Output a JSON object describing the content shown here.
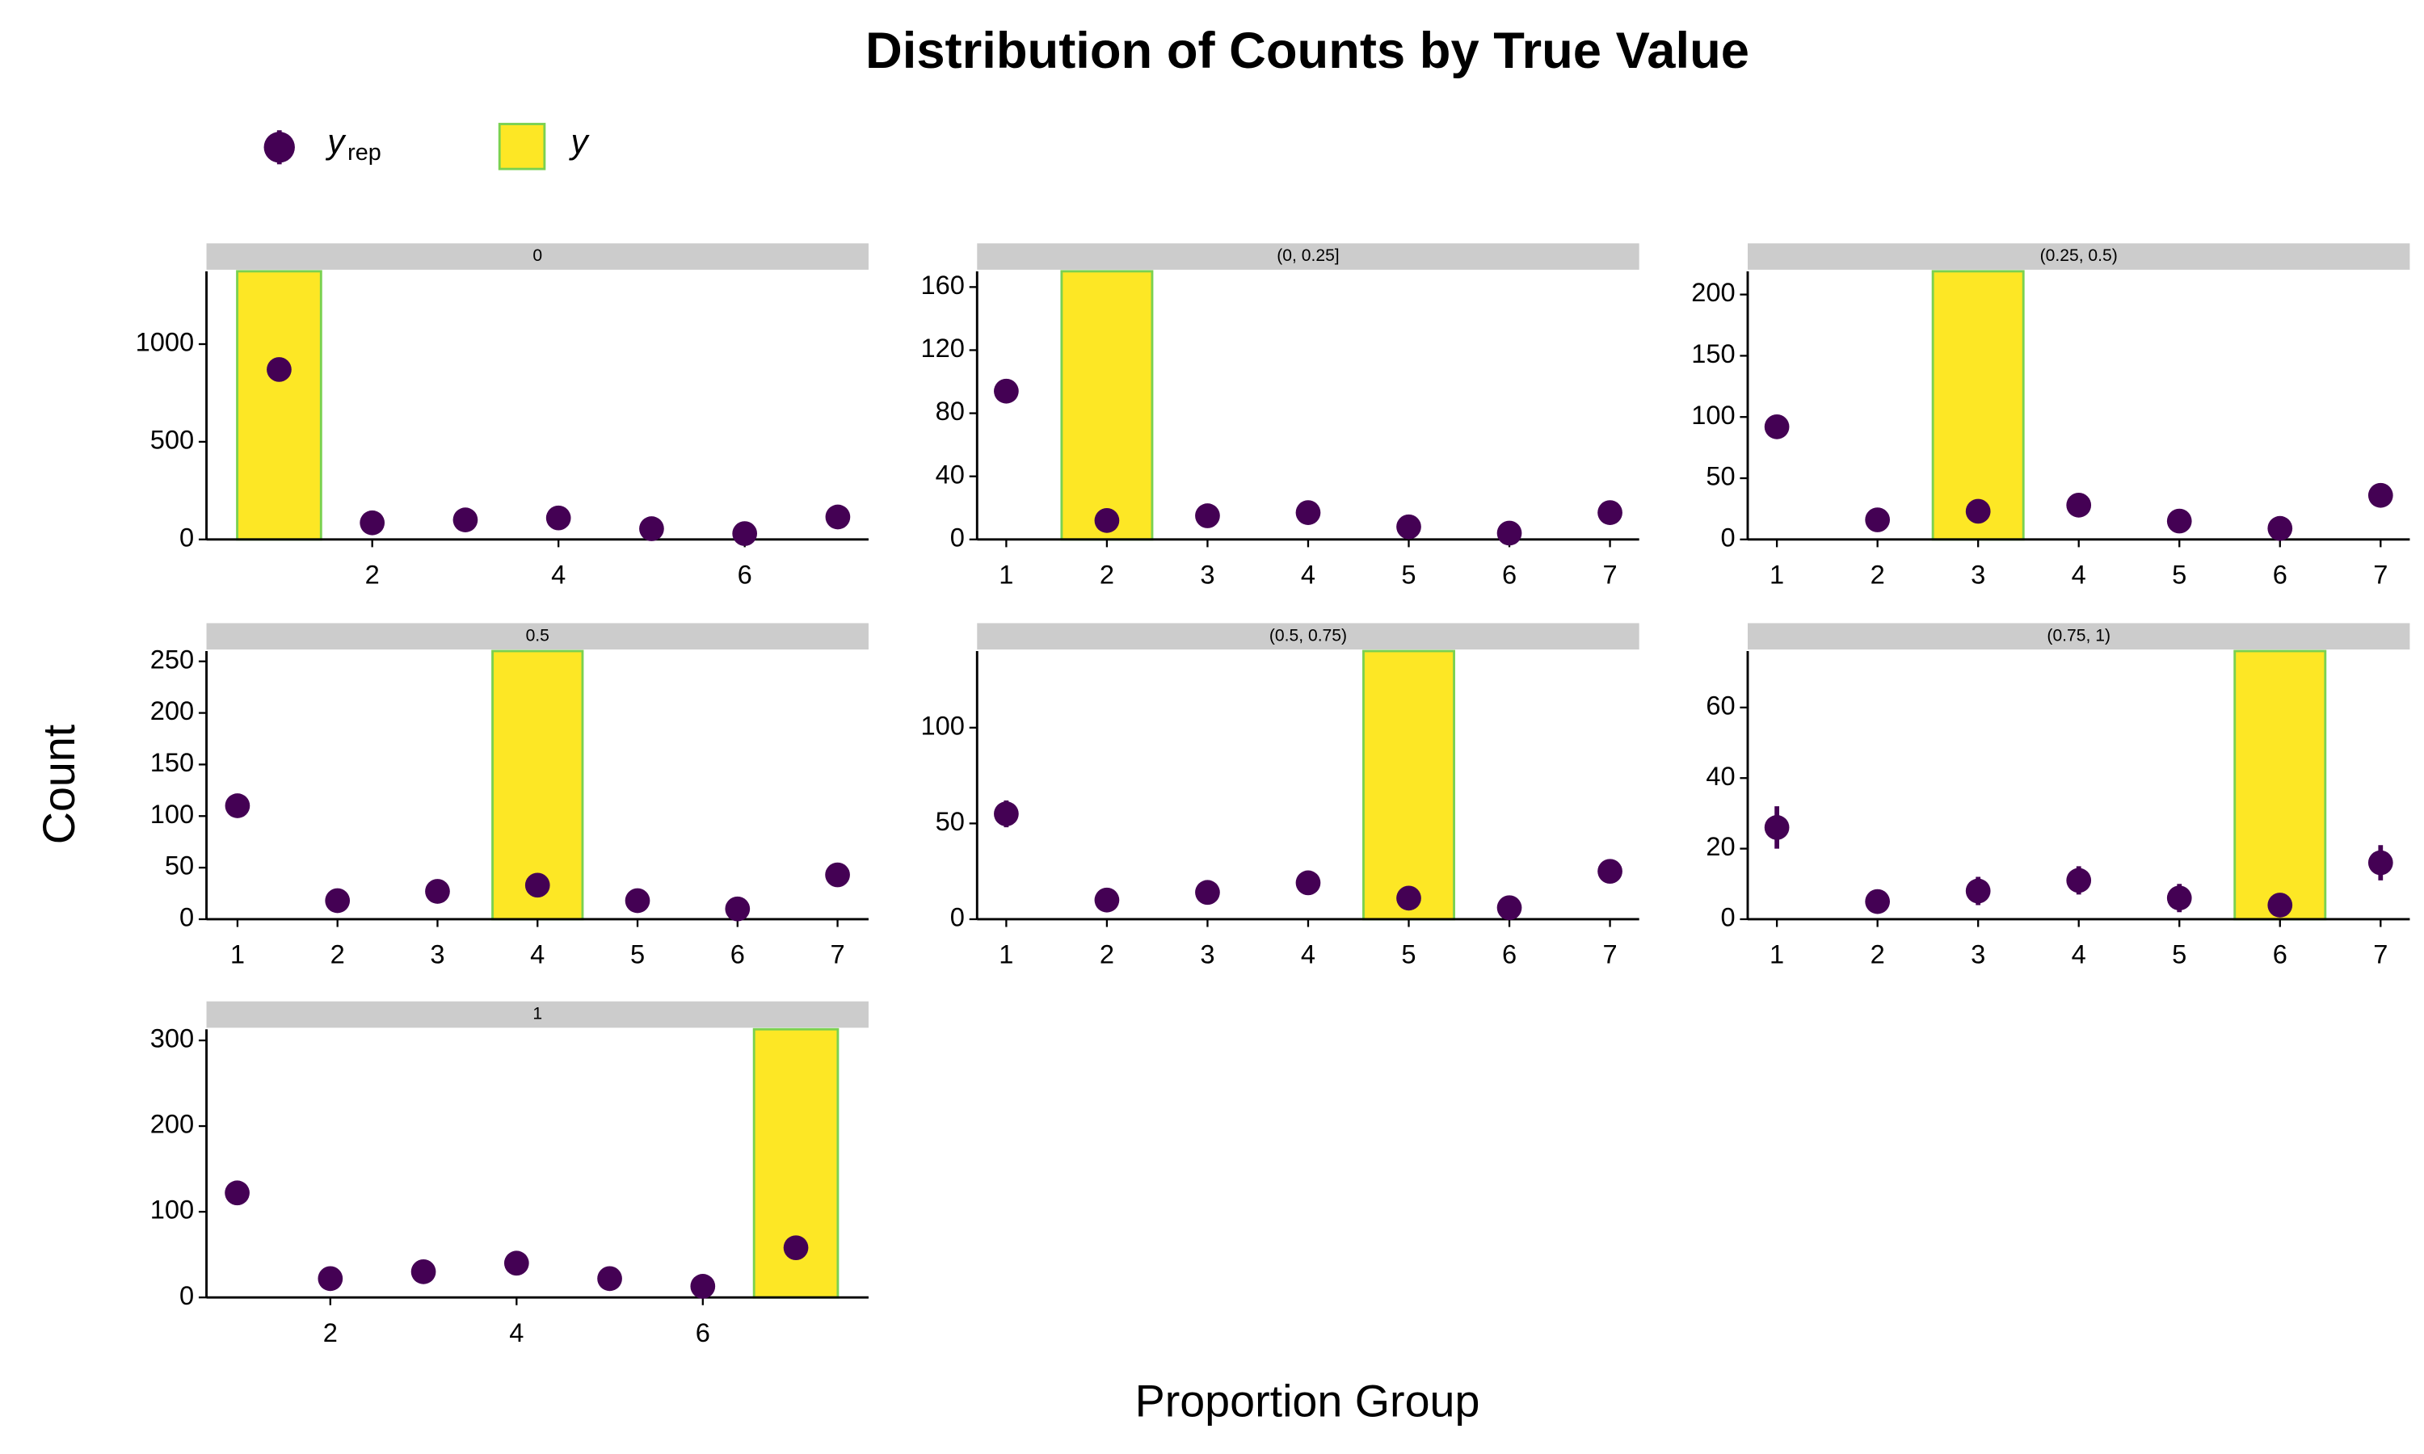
{
  "chart_data": {
    "type": "facet",
    "title": "Distribution of Counts by True Value",
    "xlabel": "Proportion Group",
    "ylabel": "Count",
    "legend": [
      {
        "name": "y",
        "subscript": "rep",
        "kind": "point",
        "color": "#440154"
      },
      {
        "name": "y",
        "kind": "bar",
        "color": "#fde725",
        "edge": "#7ad151"
      }
    ],
    "panels": [
      {
        "strip": "0",
        "x": [
          1,
          2,
          3,
          4,
          5,
          6,
          7
        ],
        "values": [
          870,
          85,
          100,
          110,
          55,
          30,
          115
        ],
        "errors": [
          15,
          8,
          8,
          8,
          6,
          5,
          8
        ],
        "bar_x": 1,
        "bar_value": 1373,
        "xlim": [
          0.22,
          7.33
        ],
        "xticks": [
          2,
          4,
          6
        ],
        "ylim": [
          0,
          1373
        ],
        "yticks": [
          0,
          500,
          1000
        ]
      },
      {
        "strip": "(0, 0.25]",
        "x": [
          1,
          2,
          3,
          4,
          5,
          6,
          7
        ],
        "values": [
          94,
          12,
          15,
          17,
          8,
          4,
          17
        ],
        "errors": [
          5,
          2,
          2,
          2,
          2,
          1,
          2
        ],
        "bar_x": 2,
        "bar_value": 170,
        "xlim": [
          0.71,
          7.29
        ],
        "xticks": [
          1,
          2,
          3,
          4,
          5,
          6,
          7
        ],
        "ylim": [
          0,
          170
        ],
        "yticks": [
          0,
          40,
          80,
          120,
          160
        ]
      },
      {
        "strip": "(0.25, 0.5)",
        "x": [
          1,
          2,
          3,
          4,
          5,
          6,
          7
        ],
        "values": [
          92,
          16,
          23,
          28,
          15,
          9,
          36
        ],
        "errors": [
          4,
          2,
          2,
          2,
          2,
          2,
          3
        ],
        "bar_x": 3,
        "bar_value": 219,
        "xlim": [
          0.71,
          7.29
        ],
        "xticks": [
          1,
          2,
          3,
          4,
          5,
          6,
          7
        ],
        "ylim": [
          0,
          219
        ],
        "yticks": [
          0,
          50,
          100,
          150,
          200
        ]
      },
      {
        "strip": "0.5",
        "x": [
          1,
          2,
          3,
          4,
          5,
          6,
          7
        ],
        "values": [
          110,
          18,
          27,
          33,
          18,
          10,
          43
        ],
        "errors": [
          5,
          2,
          3,
          3,
          2,
          2,
          3
        ],
        "bar_x": 4,
        "bar_value": 260,
        "xlim": [
          0.69,
          7.31
        ],
        "xticks": [
          1,
          2,
          3,
          4,
          5,
          6,
          7
        ],
        "ylim": [
          0,
          260
        ],
        "yticks": [
          0,
          50,
          100,
          150,
          200,
          250
        ]
      },
      {
        "strip": "(0.5, 0.75)",
        "x": [
          1,
          2,
          3,
          4,
          5,
          6,
          7
        ],
        "values": [
          55,
          10,
          14,
          19,
          11,
          6,
          25
        ],
        "errors": [
          7,
          2,
          2,
          2,
          2,
          2,
          3
        ],
        "bar_x": 5,
        "bar_value": 140,
        "xlim": [
          0.71,
          7.29
        ],
        "xticks": [
          1,
          2,
          3,
          4,
          5,
          6,
          7
        ],
        "ylim": [
          0,
          140
        ],
        "yticks": [
          0,
          50,
          100
        ]
      },
      {
        "strip": "(0.75, 1)",
        "x": [
          1,
          2,
          3,
          4,
          5,
          6,
          7
        ],
        "values": [
          26,
          5,
          8,
          11,
          6,
          4,
          16
        ],
        "errors": [
          6,
          2,
          4,
          4,
          4,
          1,
          5
        ],
        "bar_x": 6,
        "bar_value": 76,
        "xlim": [
          0.71,
          7.29
        ],
        "xticks": [
          1,
          2,
          3,
          4,
          5,
          6,
          7
        ],
        "ylim": [
          0,
          76
        ],
        "yticks": [
          0,
          20,
          40,
          60
        ]
      },
      {
        "strip": "1",
        "x": [
          1,
          2,
          3,
          4,
          5,
          6,
          7
        ],
        "values": [
          122,
          22,
          30,
          40,
          22,
          13,
          58
        ],
        "errors": [
          5,
          3,
          3,
          3,
          3,
          2,
          4
        ],
        "bar_x": 7,
        "bar_value": 313,
        "xlim": [
          0.67,
          7.78
        ],
        "xticks": [
          2,
          4,
          6
        ],
        "ylim": [
          0,
          313
        ],
        "yticks": [
          0,
          100,
          200,
          300
        ]
      }
    ]
  }
}
